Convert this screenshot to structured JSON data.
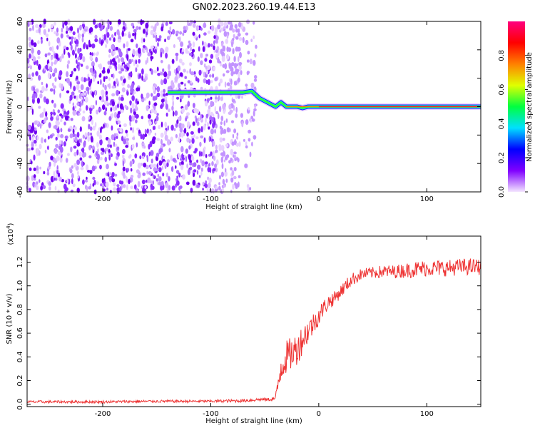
{
  "figure_title": "GN02.2023.260.19.44.E13",
  "chart_data": [
    {
      "type": "heatmap",
      "xlabel": "Height of straight line (km)",
      "ylabel": "Frequency (Hz)",
      "xlim": [
        -270,
        150
      ],
      "ylim": [
        -60,
        60
      ],
      "x_ticks": [
        -200,
        -100,
        0,
        100
      ],
      "y_ticks": [
        -60,
        -40,
        -20,
        0,
        20,
        40,
        60
      ],
      "x_tick_labels": [
        "-200",
        "-100",
        "0",
        "100"
      ],
      "y_tick_labels": [
        "-60",
        "-40",
        "-20",
        "0",
        "20",
        "40",
        "60"
      ],
      "noise_region_x": [
        -270,
        -58
      ],
      "signal_trace": {
        "x": [
          -140,
          -125,
          -100,
          -90,
          -80,
          -70,
          -62,
          -55,
          -50,
          -45,
          -40,
          -35,
          -30,
          -25,
          -20,
          -15,
          -10,
          0,
          50,
          150
        ],
        "y": [
          10,
          10,
          10,
          10,
          10,
          10,
          11,
          6,
          4,
          2,
          0,
          3,
          0,
          0,
          0,
          -1,
          0,
          0,
          0,
          0
        ]
      },
      "colorbar": {
        "label": "Normalized spectral amplitude",
        "range": [
          0,
          1
        ],
        "ticks": [
          0.0,
          0.2,
          0.4,
          0.6,
          0.8
        ],
        "tick_labels": [
          "0.0",
          "0.2",
          "0.4",
          "0.6",
          "0.8"
        ],
        "colormap": [
          "#f4e6ff",
          "#8000ff",
          "#0000ff",
          "#00e0ff",
          "#00ff40",
          "#e0ff00",
          "#ff8000",
          "#ff0000",
          "#ff0080"
        ]
      }
    },
    {
      "type": "line",
      "xlabel": "Height of straight line (km)",
      "ylabel": "SNR (10 * v/v)",
      "y_multiplier": "(x10",
      "y_multiplier_exp": "4",
      "y_multiplier_close": ")",
      "xlim": [
        -270,
        150
      ],
      "ylim": [
        -0.02,
        1.42
      ],
      "x_ticks": [
        -200,
        -100,
        0,
        100
      ],
      "y_ticks": [
        0.0,
        0.2,
        0.4,
        0.6,
        0.8,
        1.0,
        1.2
      ],
      "x_tick_labels": [
        "-200",
        "-100",
        "0",
        "100"
      ],
      "y_tick_labels": [
        "0.0",
        "0.2",
        "0.4",
        "0.6",
        "0.8",
        "1.0",
        "1.2"
      ],
      "color": "#ee3333",
      "series": [
        {
          "x": [
            -270,
            -250,
            -200,
            -150,
            -100,
            -70,
            -55,
            -45,
            -40,
            -38,
            -35,
            -30,
            -25,
            -20,
            -15,
            -10,
            -5,
            0,
            5,
            10,
            15,
            20,
            25,
            30,
            40,
            50,
            60,
            70,
            80,
            90,
            100,
            110,
            120,
            130,
            140,
            150
          ],
          "values": [
            0.02,
            0.02,
            0.02,
            0.025,
            0.025,
            0.03,
            0.04,
            0.04,
            0.05,
            0.15,
            0.32,
            0.4,
            0.43,
            0.47,
            0.55,
            0.62,
            0.68,
            0.75,
            0.82,
            0.87,
            0.9,
            0.95,
            1.0,
            1.05,
            1.1,
            1.11,
            1.12,
            1.12,
            1.13,
            1.14,
            1.15,
            1.15,
            1.15,
            1.16,
            1.16,
            1.16
          ],
          "noise": [
            0.008,
            0.008,
            0.008,
            0.008,
            0.008,
            0.01,
            0.01,
            0.01,
            0.02,
            0.06,
            0.1,
            0.1,
            0.1,
            0.1,
            0.09,
            0.08,
            0.07,
            0.06,
            0.05,
            0.05,
            0.04,
            0.04,
            0.04,
            0.04,
            0.035,
            0.035,
            0.04,
            0.04,
            0.045,
            0.05,
            0.05,
            0.05,
            0.05,
            0.05,
            0.05,
            0.05
          ]
        }
      ]
    }
  ]
}
